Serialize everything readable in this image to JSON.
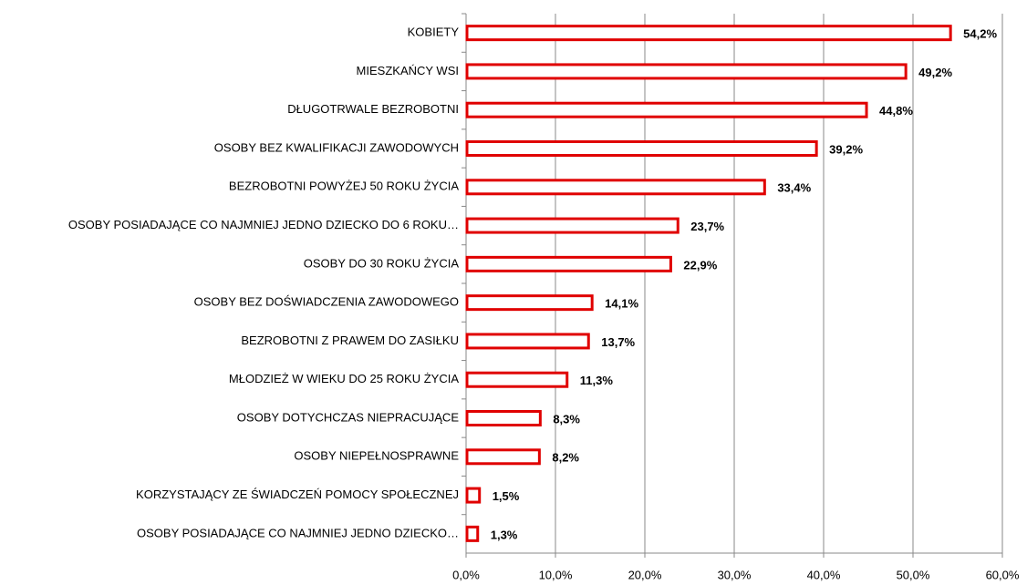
{
  "chart_data": {
    "type": "bar",
    "orientation": "horizontal",
    "categories": [
      "KOBIETY",
      "MIESZKAŃCY WSI",
      "DŁUGOTRWALE BEZROBOTNI",
      "OSOBY BEZ KWALIFIKACJI ZAWODOWYCH",
      "BEZROBOTNI POWYŻEJ 50 ROKU ŻYCIA",
      "OSOBY POSIADAJĄCE CO NAJMNIEJ JEDNO DZIECKO DO 6 ROKU…",
      "OSOBY DO 30 ROKU ŻYCIA",
      "OSOBY BEZ DOŚWIADCZENIA ZAWODOWEGO",
      "BEZROBOTNI Z PRAWEM DO ZASIŁKU",
      "MŁODZIEŻ W WIEKU DO 25 ROKU ŻYCIA",
      "OSOBY DOTYCHCZAS NIEPRACUJĄCE",
      "OSOBY NIEPEŁNOSPRAWNE",
      "KORZYSTAJĄCY ZE ŚWIADCZEŃ POMOCY SPOŁECZNEJ",
      "OSOBY POSIADAJĄCE CO NAJMNIEJ JEDNO DZIECKO…"
    ],
    "values": [
      54.2,
      49.2,
      44.8,
      39.2,
      33.4,
      23.7,
      22.9,
      14.1,
      13.7,
      11.3,
      8.3,
      8.2,
      1.5,
      1.3
    ],
    "value_labels": [
      "54,2%",
      "49,2%",
      "44,8%",
      "39,2%",
      "33,4%",
      "23,7%",
      "22,9%",
      "14,1%",
      "13,7%",
      "11,3%",
      "8,3%",
      "8,2%",
      "1,5%",
      "1,3%"
    ],
    "color": "#e00000",
    "xlim": [
      0,
      60
    ],
    "xticks": [
      {
        "value": 0,
        "label": "0,0%"
      },
      {
        "value": 10,
        "label": "10,0%"
      },
      {
        "value": 20,
        "label": "20,0%"
      },
      {
        "value": 30,
        "label": "30,0%"
      },
      {
        "value": 40,
        "label": "40,0%"
      },
      {
        "value": 50,
        "label": "50,0%"
      },
      {
        "value": 60,
        "label": "60,0%"
      }
    ],
    "grid": true
  }
}
